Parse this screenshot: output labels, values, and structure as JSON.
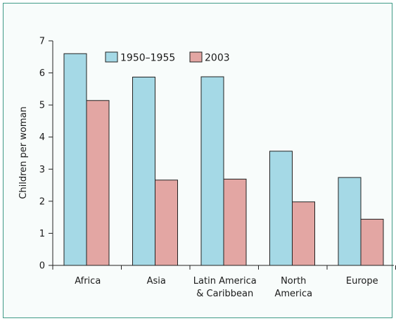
{
  "chart_data": {
    "type": "bar",
    "title": "",
    "xlabel": "",
    "ylabel": "Children per woman",
    "ylim": [
      0,
      7
    ],
    "yticks": [
      0,
      1,
      2,
      3,
      4,
      5,
      6,
      7
    ],
    "grid": false,
    "legend_position": "top-center",
    "categories": [
      [
        "Africa"
      ],
      [
        "Asia"
      ],
      [
        "Latin America",
        "& Caribbean"
      ],
      [
        "North",
        "America"
      ],
      [
        "Europe"
      ]
    ],
    "series": [
      {
        "name": "1950–1955",
        "color": "#a5d9e6",
        "values": [
          6.6,
          5.87,
          5.88,
          3.56,
          2.74
        ]
      },
      {
        "name": "2003",
        "color": "#e3a6a3",
        "values": [
          5.14,
          2.66,
          2.69,
          1.98,
          1.44
        ]
      }
    ]
  }
}
